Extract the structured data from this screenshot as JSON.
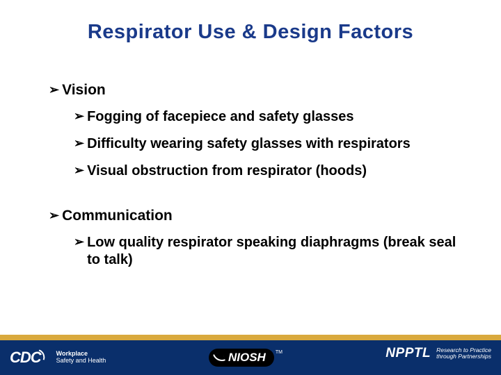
{
  "title": {
    "text": "Respirator Use & Design Factors",
    "color": "#1a3a8a",
    "fontsize": 29
  },
  "bullet_glyph": "➢",
  "sections": [
    {
      "label": "Vision",
      "items": [
        "Fogging of facepiece and safety glasses",
        "Difficulty wearing safety glasses with respirators",
        "Visual obstruction from respirator (hoods)"
      ]
    },
    {
      "label": "Communication",
      "items": [
        "Low quality respirator speaking diaphragms (break seal to talk)"
      ]
    }
  ],
  "footer": {
    "gold": "#d9a93d",
    "navy": "#0a2f6b",
    "cdc": {
      "mark": "CDC",
      "line1": "Workplace",
      "line2": "Safety and Health"
    },
    "niosh": {
      "text": "NIOSH",
      "tm": "TM"
    },
    "npptl": {
      "text": "NPPTL",
      "line1": "Research to Practice",
      "line2": "through Partnerships"
    }
  }
}
